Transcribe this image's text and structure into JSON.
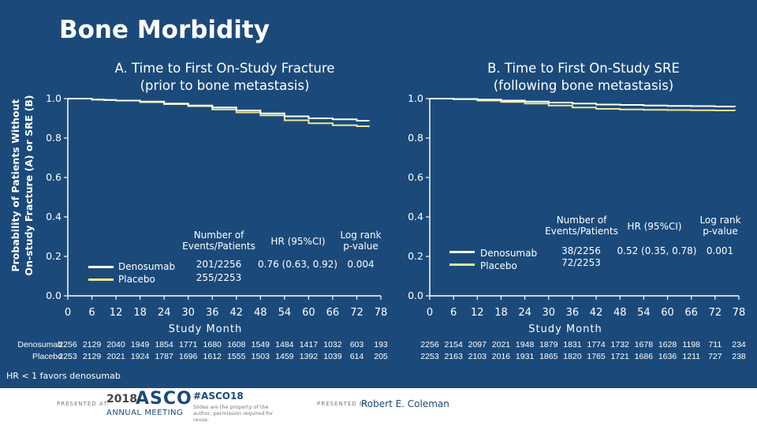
{
  "slide": {
    "title": "Bone Morbidity",
    "y_axis_label_line1": "Probability of Patients Without",
    "y_axis_label_line2": "On-study Fracture (A) or SRE (B)",
    "footnote": "HR < 1 favors denosumab"
  },
  "colors": {
    "background": "#1b4a7a",
    "denosumab": "#ffffff",
    "placebo": "#f2e58f",
    "axis": "#ffffff"
  },
  "chart_data": [
    {
      "type": "line",
      "panel": "A",
      "title_line1": "A. Time to First On-Study Fracture",
      "title_line2": "(prior to bone metastasis)",
      "xlabel": "Study Month",
      "xlim": [
        0,
        78
      ],
      "ylim": [
        0,
        1.0
      ],
      "x_ticks": [
        0,
        6,
        12,
        18,
        24,
        30,
        36,
        42,
        48,
        54,
        60,
        66,
        72,
        78
      ],
      "y_ticks": [
        0.0,
        0.2,
        0.4,
        0.6,
        0.8,
        1.0
      ],
      "y_tick_labels": [
        "0.0",
        "0.2",
        "0.4",
        "0.6",
        "0.8",
        "1.0"
      ],
      "series": [
        {
          "name": "Denosumab",
          "x": [
            0,
            3,
            6,
            9,
            12,
            18,
            24,
            30,
            36,
            42,
            48,
            54,
            60,
            66,
            72,
            75
          ],
          "y": [
            1.0,
            1.0,
            0.995,
            0.993,
            0.99,
            0.985,
            0.975,
            0.965,
            0.955,
            0.94,
            0.925,
            0.91,
            0.9,
            0.895,
            0.888,
            0.885
          ]
        },
        {
          "name": "Placebo",
          "x": [
            0,
            3,
            6,
            9,
            12,
            18,
            24,
            30,
            36,
            42,
            48,
            54,
            60,
            66,
            72,
            75
          ],
          "y": [
            1.0,
            1.0,
            0.995,
            0.993,
            0.99,
            0.982,
            0.972,
            0.962,
            0.945,
            0.93,
            0.915,
            0.89,
            0.875,
            0.865,
            0.86,
            0.855
          ]
        }
      ],
      "legend": {
        "events_header_line1": "Number of",
        "events_header_line2": "Events/Patients",
        "hr_header": "HR (95%CI)",
        "p_header_line1": "Log rank",
        "p_header_line2": "p-value",
        "entries": [
          {
            "name": "Denosumab",
            "events": "201/2256"
          },
          {
            "name": "Placebo",
            "events": "255/2253"
          }
        ],
        "hr": "0.76 (0.63, 0.92)",
        "p_value": "0.004"
      },
      "at_risk": {
        "rows": [
          {
            "label": "Denosumab",
            "values": [
              "2256",
              "2129",
              "2040",
              "1949",
              "1854",
              "1771",
              "1680",
              "1608",
              "1549",
              "1484",
              "1417",
              "1032",
              "603",
              "193"
            ]
          },
          {
            "label": "Placebo",
            "values": [
              "2253",
              "2129",
              "2021",
              "1924",
              "1787",
              "1696",
              "1612",
              "1555",
              "1503",
              "1459",
              "1392",
              "1039",
              "614",
              "205"
            ]
          }
        ]
      }
    },
    {
      "type": "line",
      "panel": "B",
      "title_line1": "B. Time to First On-Study SRE",
      "title_line2": "(following bone metastasis)",
      "xlabel": "Study Month",
      "xlim": [
        0,
        78
      ],
      "ylim": [
        0,
        1.0
      ],
      "x_ticks": [
        0,
        6,
        12,
        18,
        24,
        30,
        36,
        42,
        48,
        54,
        60,
        66,
        72,
        78
      ],
      "y_ticks": [
        0.0,
        0.2,
        0.4,
        0.6,
        0.8,
        1.0
      ],
      "y_tick_labels": [
        "0.0",
        "0.2",
        "0.4",
        "0.6",
        "0.8",
        "1.0"
      ],
      "series": [
        {
          "name": "Denosumab",
          "x": [
            0,
            6,
            12,
            18,
            24,
            30,
            36,
            42,
            48,
            54,
            60,
            66,
            72,
            77
          ],
          "y": [
            1.0,
            0.998,
            0.995,
            0.99,
            0.985,
            0.98,
            0.975,
            0.97,
            0.968,
            0.965,
            0.963,
            0.962,
            0.96,
            0.958
          ]
        },
        {
          "name": "Placebo",
          "x": [
            0,
            6,
            12,
            18,
            24,
            30,
            36,
            42,
            48,
            54,
            60,
            66,
            72,
            77
          ],
          "y": [
            1.0,
            0.997,
            0.99,
            0.983,
            0.975,
            0.965,
            0.955,
            0.948,
            0.945,
            0.943,
            0.942,
            0.941,
            0.94,
            0.939
          ]
        }
      ],
      "legend": {
        "events_header_line1": "Number of",
        "events_header_line2": "Events/Patients",
        "hr_header": "HR (95%CI)",
        "p_header_line1": "Log rank",
        "p_header_line2": "p-value",
        "entries": [
          {
            "name": "Denosumab",
            "events": "38/2256"
          },
          {
            "name": "Placebo",
            "events": "72/2253"
          }
        ],
        "hr": "0.52 (0.35, 0.78)",
        "p_value": "0.001"
      },
      "at_risk": {
        "rows": [
          {
            "label": "",
            "values": [
              "2256",
              "2154",
              "2097",
              "2021",
              "1948",
              "1879",
              "1831",
              "1774",
              "1732",
              "1678",
              "1628",
              "1198",
              "711",
              "234"
            ]
          },
          {
            "label": "",
            "values": [
              "2253",
              "2163",
              "2103",
              "2016",
              "1931",
              "1865",
              "1820",
              "1765",
              "1721",
              "1686",
              "1636",
              "1211",
              "727",
              "238"
            ]
          }
        ]
      }
    }
  ],
  "footer": {
    "presented_at": "PRESENTED AT:",
    "conf_year": "2018",
    "conf_brand": "ASCO",
    "conf_name": "ANNUAL MEETING",
    "hashtag": "#ASCO18",
    "slide_note": "Slides are the property of the author, permission required for reuse.",
    "presented_by": "PRESENTED BY:",
    "presenter": "Robert E. Coleman"
  }
}
